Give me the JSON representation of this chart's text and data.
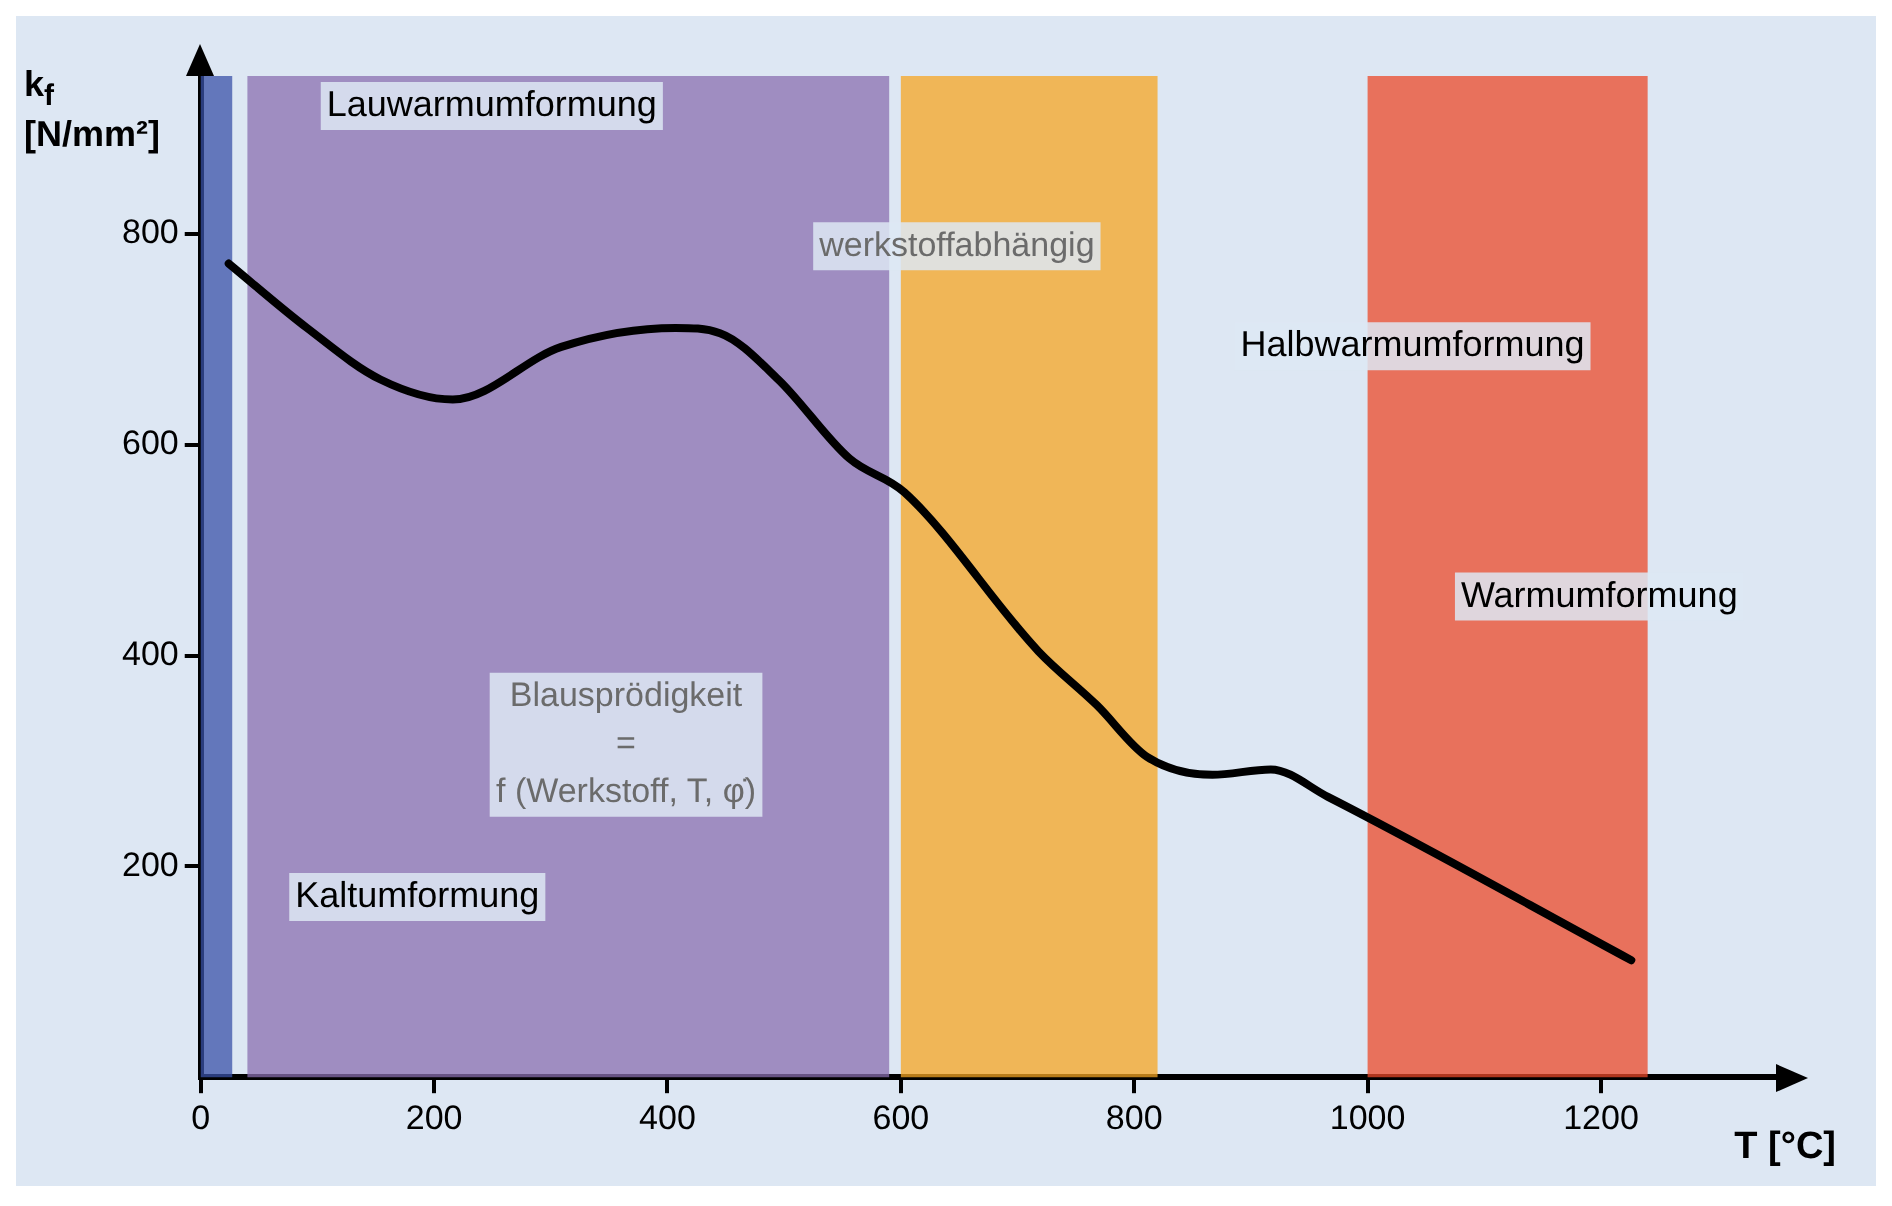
{
  "chart_data": {
    "type": "line",
    "xlabel": "T [°C]",
    "ylabel": "k$_{f}$ [N/mm²]",
    "xlim": [
      0,
      1350
    ],
    "xticks": [
      0,
      200,
      400,
      600,
      800,
      1000,
      1200
    ],
    "ylim": [
      0,
      950
    ],
    "yticks": [
      200,
      400,
      600,
      800
    ],
    "grid": false,
    "legend": false,
    "marker": "none",
    "line_style": "solid",
    "series": [
      {
        "color": "#000000",
        "x": [
          24,
          91,
          154,
          216,
          309,
          407,
          445,
          495,
          556,
          603,
          718,
          768,
          811,
          867,
          917,
          966,
          1226
        ],
        "values": [
          772,
          711,
          662,
          643,
          693,
          711,
          706,
          662,
          587,
          555,
          404,
          353,
          304,
          287,
          292,
          266,
          111
        ]
      }
    ],
    "bands": [
      {
        "axis": "x",
        "from": 0,
        "to": 27,
        "label": "Kaltumformung",
        "color": "#3a52a8"
      },
      {
        "axis": "x",
        "from": 40,
        "to": 590,
        "label": "Lauwarmumformung",
        "color": "#8a6fb0"
      },
      {
        "axis": "x",
        "from": 600,
        "to": 820,
        "label": "Halbwarmumformung",
        "color": "#f5a623"
      },
      {
        "axis": "x",
        "from": 1000,
        "to": 1240,
        "label": "Warmumformung",
        "color": "#eb4a2a"
      }
    ],
    "annotations": [
      "werkstoffabhängig",
      "Blausprödigkeit\n=\nf (Werkstoff, T, φ̇)"
    ]
  }
}
